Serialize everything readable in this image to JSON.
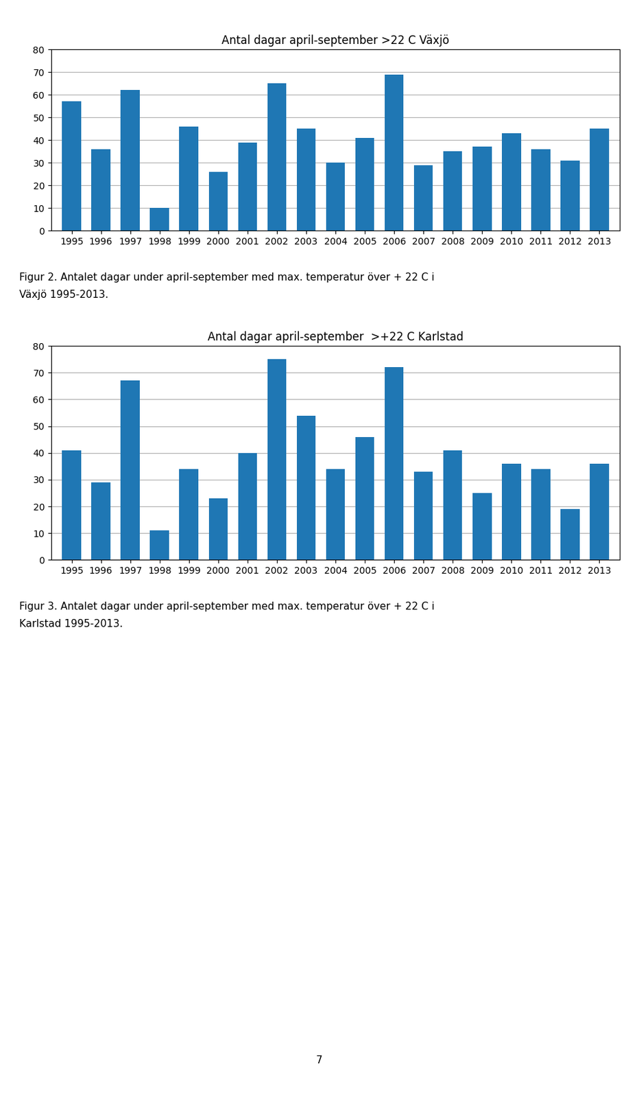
{
  "chart_data": [
    {
      "type": "bar",
      "title": "Antal dagar april-september >22 C Växjö",
      "categories": [
        "1995",
        "1996",
        "1997",
        "1998",
        "1999",
        "2000",
        "2001",
        "2002",
        "2003",
        "2004",
        "2005",
        "2006",
        "2007",
        "2008",
        "2009",
        "2010",
        "2011",
        "2012",
        "2013"
      ],
      "values": [
        57,
        36,
        62,
        10,
        46,
        26,
        39,
        65,
        45,
        30,
        41,
        69,
        29,
        35,
        37,
        43,
        36,
        31,
        45
      ],
      "ylim": [
        0,
        80
      ],
      "yticks": [
        0,
        10,
        20,
        30,
        40,
        50,
        60,
        70,
        80
      ],
      "grid": true,
      "annotations": [
        "Figur 2. Antalet dagar under april-september med max. temperatur över + 22 C i",
        "Växjö 1995-2013."
      ]
    },
    {
      "type": "bar",
      "title": "Antal dagar april-september  >+22 C Karlstad",
      "categories": [
        "1995",
        "1996",
        "1997",
        "1998",
        "1999",
        "2000",
        "2001",
        "2002",
        "2003",
        "2004",
        "2005",
        "2006",
        "2007",
        "2008",
        "2009",
        "2010",
        "2011",
        "2012",
        "2013"
      ],
      "values": [
        41,
        29,
        67,
        11,
        34,
        23,
        40,
        75,
        54,
        34,
        46,
        72,
        33,
        41,
        25,
        36,
        34,
        19,
        36
      ],
      "ylim": [
        0,
        80
      ],
      "yticks": [
        0,
        10,
        20,
        30,
        40,
        50,
        60,
        70,
        80
      ],
      "grid": true,
      "annotations": [
        "Figur 3. Antalet dagar under april-september med max. temperatur över + 22 C i",
        "Karlstad 1995-2013."
      ]
    }
  ],
  "annotations": [
    "7"
  ]
}
